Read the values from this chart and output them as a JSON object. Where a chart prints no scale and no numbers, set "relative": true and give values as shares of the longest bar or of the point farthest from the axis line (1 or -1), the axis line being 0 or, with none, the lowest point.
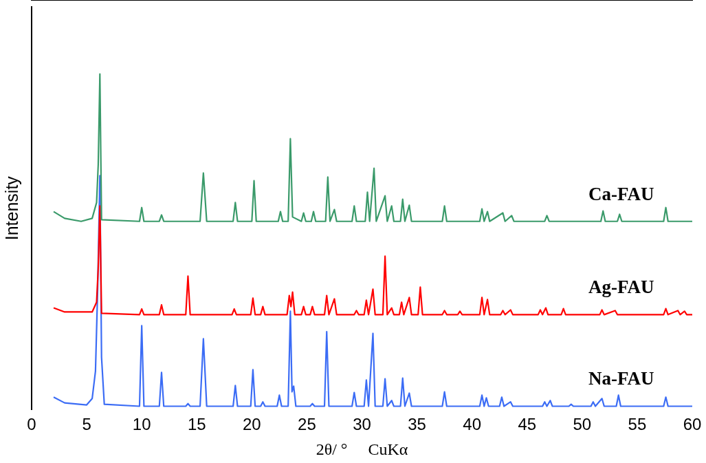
{
  "chart_data": {
    "type": "line",
    "relative": true,
    "xlabel": "2θ/ °     CuKα",
    "ylabel": "Intensity",
    "xlim": [
      0,
      60
    ],
    "xticks": [
      0,
      5,
      10,
      15,
      20,
      25,
      30,
      35,
      40,
      45,
      50,
      55,
      60
    ],
    "grid": false,
    "legend": false,
    "marker": "none",
    "line_style": "solid",
    "series": [
      {
        "name": "Ca-FAU",
        "color": "#3a9a6a",
        "x": [
          2.0,
          3.0,
          4.5,
          5.5,
          5.9,
          6.05,
          6.2,
          6.35,
          9.8,
          10.0,
          10.2,
          11.6,
          11.8,
          12.0,
          15.3,
          15.6,
          15.9,
          18.3,
          18.5,
          18.7,
          20.0,
          20.2,
          20.4,
          22.4,
          22.6,
          22.8,
          23.3,
          23.5,
          23.7,
          24.5,
          24.7,
          24.9,
          25.4,
          25.6,
          25.8,
          26.7,
          26.9,
          27.1,
          27.5,
          27.7,
          29.1,
          29.3,
          29.5,
          30.3,
          30.5,
          30.7,
          31.1,
          31.3,
          32.1,
          32.3,
          32.7,
          32.9,
          33.5,
          33.7,
          33.9,
          34.3,
          34.5,
          37.3,
          37.5,
          37.7,
          40.7,
          40.9,
          41.1,
          41.4,
          41.6,
          42.8,
          43.0,
          43.6,
          43.8,
          46.6,
          46.8,
          47.0,
          51.7,
          51.9,
          52.1,
          53.2,
          53.4,
          53.6,
          57.4,
          57.6,
          57.8,
          60.0
        ],
        "values": [
          0.59,
          0.57,
          0.561,
          0.57,
          0.617,
          0.73,
          1.0,
          0.566,
          0.561,
          0.602,
          0.561,
          0.561,
          0.58,
          0.561,
          0.561,
          0.705,
          0.561,
          0.561,
          0.617,
          0.561,
          0.561,
          0.682,
          0.561,
          0.561,
          0.59,
          0.561,
          0.561,
          0.807,
          0.574,
          0.561,
          0.586,
          0.561,
          0.561,
          0.59,
          0.561,
          0.561,
          0.693,
          0.561,
          0.596,
          0.561,
          0.561,
          0.607,
          0.561,
          0.561,
          0.648,
          0.561,
          0.719,
          0.561,
          0.637,
          0.561,
          0.607,
          0.561,
          0.561,
          0.627,
          0.561,
          0.609,
          0.561,
          0.561,
          0.607,
          0.561,
          0.561,
          0.598,
          0.561,
          0.59,
          0.561,
          0.586,
          0.561,
          0.578,
          0.561,
          0.561,
          0.578,
          0.561,
          0.561,
          0.592,
          0.561,
          0.561,
          0.582,
          0.561,
          0.561,
          0.602,
          0.561,
          0.561
        ]
      },
      {
        "name": "Ag-FAU",
        "color": "#ff0000",
        "x": [
          2.0,
          3.0,
          5.5,
          5.9,
          6.05,
          6.2,
          6.35,
          9.8,
          10.0,
          10.2,
          11.6,
          11.8,
          12.0,
          14.0,
          14.2,
          14.4,
          18.2,
          18.4,
          18.6,
          19.9,
          20.1,
          20.3,
          20.8,
          21.0,
          21.2,
          23.2,
          23.4,
          23.55,
          23.7,
          23.9,
          24.5,
          24.7,
          24.9,
          25.3,
          25.5,
          25.7,
          26.6,
          26.8,
          27.0,
          27.5,
          27.7,
          29.3,
          29.5,
          29.7,
          30.2,
          30.4,
          30.6,
          31.0,
          31.2,
          31.9,
          32.1,
          32.3,
          32.7,
          32.9,
          33.4,
          33.6,
          33.8,
          34.3,
          34.5,
          35.1,
          35.3,
          35.5,
          37.3,
          37.5,
          37.7,
          38.7,
          38.9,
          39.1,
          40.7,
          40.9,
          41.1,
          41.4,
          41.6,
          42.6,
          42.8,
          43.0,
          43.5,
          43.7,
          46.0,
          46.2,
          46.4,
          46.7,
          46.9,
          48.1,
          48.3,
          48.5,
          51.6,
          51.8,
          52.0,
          53.0,
          53.2,
          57.4,
          57.6,
          57.8,
          58.7,
          58.9,
          59.3,
          59.5,
          60.0
        ],
        "values": [
          0.303,
          0.291,
          0.291,
          0.32,
          0.422,
          0.607,
          0.287,
          0.283,
          0.3,
          0.283,
          0.283,
          0.312,
          0.283,
          0.283,
          0.398,
          0.283,
          0.283,
          0.3,
          0.283,
          0.283,
          0.332,
          0.283,
          0.283,
          0.307,
          0.283,
          0.283,
          0.34,
          0.307,
          0.35,
          0.283,
          0.283,
          0.307,
          0.283,
          0.283,
          0.307,
          0.283,
          0.283,
          0.34,
          0.283,
          0.33,
          0.283,
          0.283,
          0.295,
          0.283,
          0.283,
          0.326,
          0.283,
          0.359,
          0.283,
          0.283,
          0.457,
          0.283,
          0.303,
          0.283,
          0.283,
          0.32,
          0.283,
          0.334,
          0.283,
          0.283,
          0.365,
          0.283,
          0.283,
          0.295,
          0.283,
          0.283,
          0.293,
          0.283,
          0.283,
          0.334,
          0.283,
          0.328,
          0.283,
          0.283,
          0.295,
          0.283,
          0.297,
          0.283,
          0.283,
          0.297,
          0.283,
          0.303,
          0.283,
          0.283,
          0.301,
          0.283,
          0.283,
          0.297,
          0.283,
          0.295,
          0.283,
          0.283,
          0.301,
          0.283,
          0.295,
          0.283,
          0.293,
          0.283,
          0.283
        ]
      },
      {
        "name": "Na-FAU",
        "color": "#3b6cf5",
        "x": [
          2.0,
          3.0,
          5.0,
          5.5,
          5.8,
          6.0,
          6.2,
          6.35,
          6.6,
          9.8,
          10.0,
          10.2,
          11.6,
          11.8,
          12.0,
          14.0,
          14.2,
          14.4,
          15.3,
          15.6,
          15.9,
          18.3,
          18.5,
          18.7,
          19.9,
          20.1,
          20.3,
          20.8,
          21.0,
          21.2,
          22.3,
          22.5,
          22.7,
          23.3,
          23.5,
          23.65,
          23.8,
          24.0,
          25.3,
          25.5,
          25.7,
          26.6,
          26.8,
          27.0,
          29.1,
          29.3,
          29.5,
          30.2,
          30.4,
          30.6,
          31.0,
          31.2,
          31.9,
          32.1,
          32.3,
          32.7,
          32.9,
          33.5,
          33.7,
          33.9,
          34.3,
          34.5,
          37.3,
          37.5,
          37.7,
          40.7,
          40.9,
          41.1,
          41.3,
          41.5,
          42.5,
          42.7,
          42.9,
          43.5,
          43.7,
          46.4,
          46.6,
          46.8,
          47.1,
          47.3,
          48.8,
          49.0,
          49.2,
          50.8,
          51.0,
          51.2,
          51.8,
          52.0,
          53.1,
          53.3,
          53.5,
          57.4,
          57.6,
          57.8,
          60.0
        ],
        "values": [
          0.037,
          0.02,
          0.014,
          0.033,
          0.115,
          0.361,
          0.697,
          0.156,
          0.016,
          0.01,
          0.25,
          0.01,
          0.01,
          0.111,
          0.01,
          0.01,
          0.018,
          0.01,
          0.01,
          0.211,
          0.01,
          0.01,
          0.072,
          0.01,
          0.01,
          0.119,
          0.01,
          0.01,
          0.023,
          0.01,
          0.01,
          0.043,
          0.01,
          0.01,
          0.293,
          0.053,
          0.07,
          0.01,
          0.01,
          0.018,
          0.01,
          0.01,
          0.232,
          0.01,
          0.01,
          0.051,
          0.01,
          0.01,
          0.088,
          0.01,
          0.227,
          0.01,
          0.01,
          0.092,
          0.01,
          0.027,
          0.01,
          0.01,
          0.094,
          0.01,
          0.049,
          0.01,
          0.01,
          0.053,
          0.01,
          0.01,
          0.043,
          0.01,
          0.035,
          0.01,
          0.01,
          0.037,
          0.01,
          0.023,
          0.01,
          0.01,
          0.023,
          0.01,
          0.027,
          0.01,
          0.01,
          0.016,
          0.01,
          0.01,
          0.023,
          0.01,
          0.033,
          0.01,
          0.01,
          0.043,
          0.01,
          0.01,
          0.037,
          0.01,
          0.01
        ]
      }
    ]
  }
}
